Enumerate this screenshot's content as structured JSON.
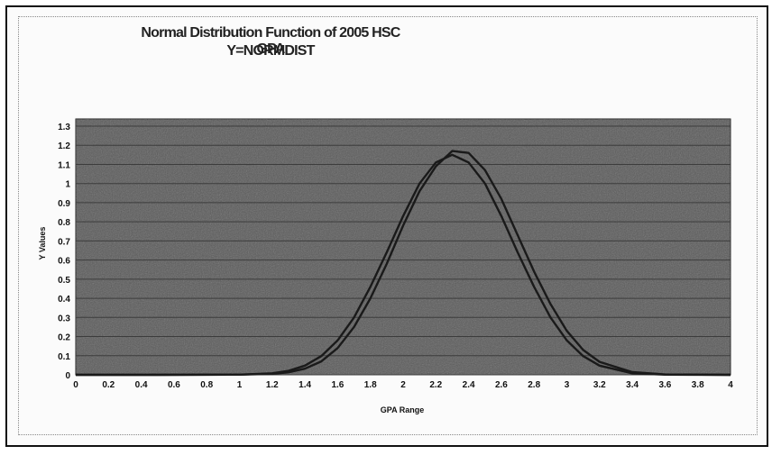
{
  "chart_data": {
    "type": "line",
    "title": "Normal Distribution Function of 2005  HSC GPA",
    "subtitle": "Y=NORMDIST",
    "xlabel": "GPA Range",
    "ylabel": "Y Values",
    "xlim": [
      0,
      4
    ],
    "ylim": [
      0,
      1.3
    ],
    "xticks": [
      0,
      0.2,
      0.4,
      0.6,
      0.8,
      1,
      1.2,
      1.4,
      1.6,
      1.8,
      2,
      2.2,
      2.4,
      2.6,
      2.8,
      3,
      3.2,
      3.4,
      3.6,
      3.8,
      4
    ],
    "xtick_labels": [
      "0",
      "0.2",
      "0.4",
      "0.6",
      "0.8",
      "1",
      "1.2",
      "1.4",
      "1.6",
      "1.8",
      "2",
      "2.2",
      "2.4",
      "2.6",
      "2.8",
      "3",
      "3.2",
      "3.4",
      "3.6",
      "3.8",
      "4"
    ],
    "yticks": [
      0,
      0.1,
      0.2,
      0.3,
      0.4,
      0.5,
      0.6,
      0.7,
      0.8,
      0.9,
      1,
      1.1,
      1.2,
      1.3
    ],
    "ytick_labels": [
      "0",
      "0.1",
      "0.2",
      "0.3",
      "0.4",
      "0.5",
      "0.6",
      "0.7",
      "0.8",
      "0.9",
      "1",
      "1.1",
      "1.2",
      "1.3"
    ],
    "grid": true,
    "series": [
      {
        "x": [
          0,
          0.5,
          1.0,
          1.2,
          1.3,
          1.4,
          1.5,
          1.6,
          1.7,
          1.8,
          1.9,
          2.0,
          2.1,
          2.2,
          2.3,
          2.4,
          2.5,
          2.6,
          2.7,
          2.8,
          2.9,
          3.0,
          3.1,
          3.2,
          3.4,
          3.6,
          4.0
        ],
        "y": [
          0,
          0,
          0.001,
          0.008,
          0.021,
          0.048,
          0.098,
          0.18,
          0.3,
          0.46,
          0.64,
          0.83,
          1.0,
          1.11,
          1.15,
          1.11,
          1.0,
          0.83,
          0.64,
          0.46,
          0.3,
          0.18,
          0.098,
          0.048,
          0.008,
          0.001,
          0
        ]
      },
      {
        "x": [
          0,
          0.5,
          1.0,
          1.2,
          1.3,
          1.4,
          1.5,
          1.6,
          1.7,
          1.8,
          1.9,
          2.0,
          2.1,
          2.2,
          2.3,
          2.4,
          2.5,
          2.6,
          2.7,
          2.8,
          2.9,
          3.0,
          3.1,
          3.2,
          3.4,
          3.6,
          4.0
        ],
        "y": [
          0,
          0,
          0.001,
          0.005,
          0.013,
          0.032,
          0.07,
          0.14,
          0.25,
          0.4,
          0.58,
          0.78,
          0.96,
          1.09,
          1.17,
          1.16,
          1.07,
          0.92,
          0.73,
          0.54,
          0.37,
          0.23,
          0.13,
          0.068,
          0.014,
          0.002,
          0
        ]
      }
    ],
    "colors": {
      "plot_bg": "#5a5a5a",
      "curve": "#1a1a1a",
      "grid": "#3c3c3c"
    }
  }
}
